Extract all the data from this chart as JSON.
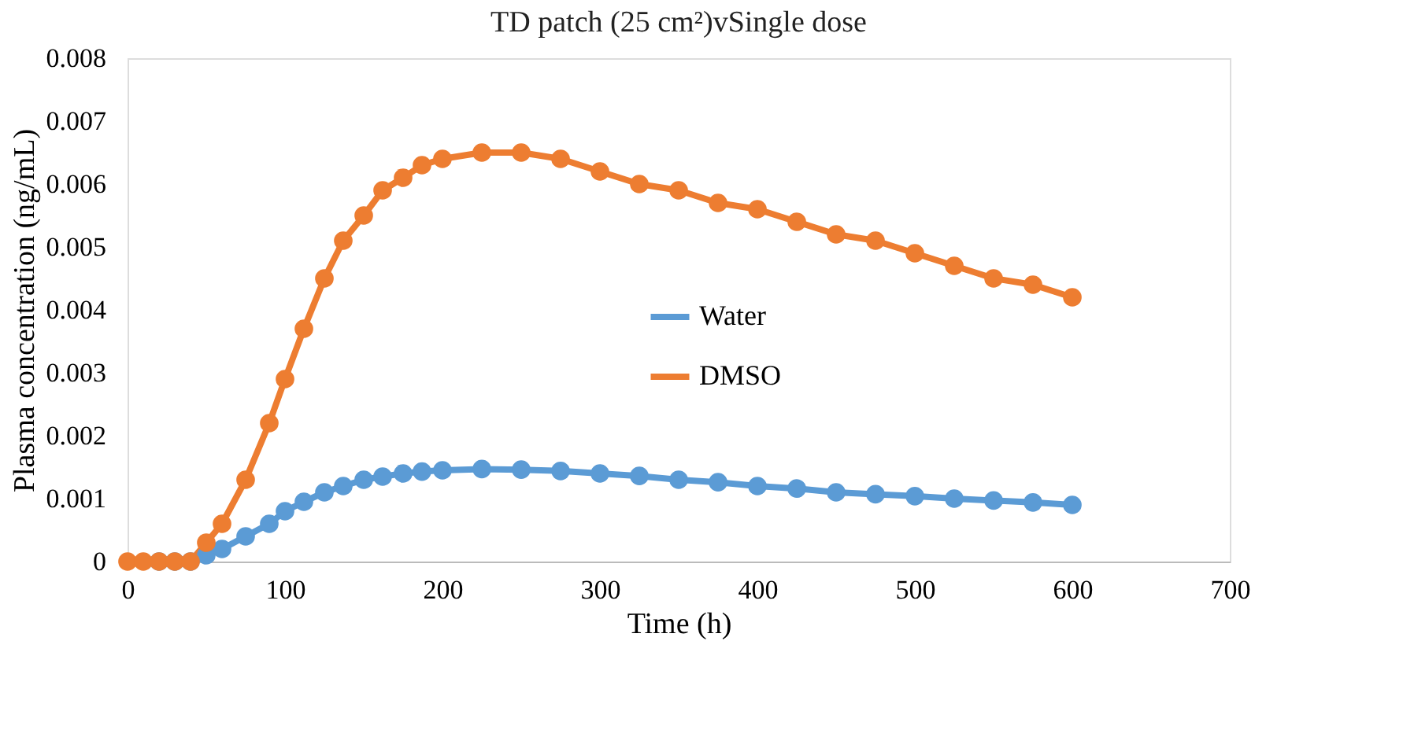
{
  "chart_data": {
    "type": "line",
    "title": "TD patch (25 cm²)vSingle dose",
    "xlabel": "Time (h)",
    "ylabel": "Plasma concentration  (ng/mL)",
    "x": [
      0,
      10,
      20,
      30,
      40,
      50,
      60,
      75,
      90,
      100,
      112,
      125,
      137,
      150,
      162,
      175,
      187,
      200,
      225,
      250,
      275,
      300,
      325,
      350,
      375,
      400,
      425,
      450,
      475,
      500,
      525,
      550,
      575,
      600
    ],
    "series": [
      {
        "name": "Water",
        "color": "#5b9bd5",
        "values": [
          null,
          null,
          0,
          0,
          0,
          0.0001,
          0.0002,
          0.0004,
          0.0006,
          0.0008,
          0.00095,
          0.0011,
          0.0012,
          0.0013,
          0.00135,
          0.0014,
          0.00143,
          0.00145,
          0.00147,
          0.00146,
          0.00144,
          0.0014,
          0.00136,
          0.0013,
          0.00126,
          0.0012,
          0.00116,
          0.0011,
          0.00107,
          0.00104,
          0.001,
          0.00097,
          0.00094,
          0.0009
        ]
      },
      {
        "name": "DMSO",
        "color": "#ed7d31",
        "values": [
          0,
          0,
          0,
          0,
          0,
          0.0003,
          0.0006,
          0.0013,
          0.0022,
          0.0029,
          0.0037,
          0.0045,
          0.0051,
          0.0055,
          0.0059,
          0.0061,
          0.0063,
          0.0064,
          0.0065,
          0.0065,
          0.0064,
          0.0062,
          0.006,
          0.0059,
          0.0057,
          0.0056,
          0.0054,
          0.0052,
          0.0051,
          0.0049,
          0.0047,
          0.0045,
          0.0044,
          0.0042
        ]
      }
    ],
    "xlim": [
      0,
      700
    ],
    "xticks": [
      0,
      100,
      200,
      300,
      400,
      500,
      600,
      700
    ],
    "ylim": [
      0,
      0.008
    ],
    "yticks": [
      0,
      0.001,
      0.002,
      0.003,
      0.004,
      0.005,
      0.006,
      0.007,
      0.008
    ],
    "grid": false,
    "legend": "center",
    "marker": "circle",
    "line_style": "solid"
  }
}
